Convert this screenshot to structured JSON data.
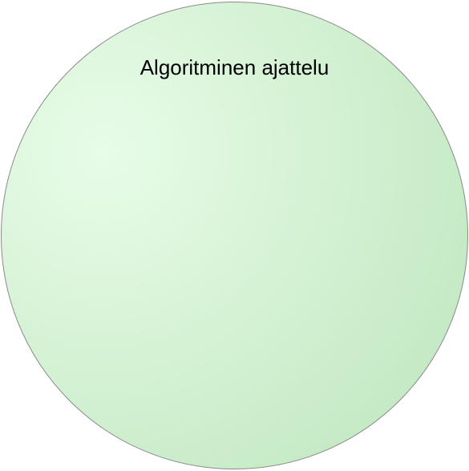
{
  "diagram": {
    "circle": {
      "label": "Algoritminen ajattelu",
      "fill_highlight": "#e8fce8",
      "fill_base": "#c4e9c4",
      "stroke": "#8a8a8a"
    }
  }
}
